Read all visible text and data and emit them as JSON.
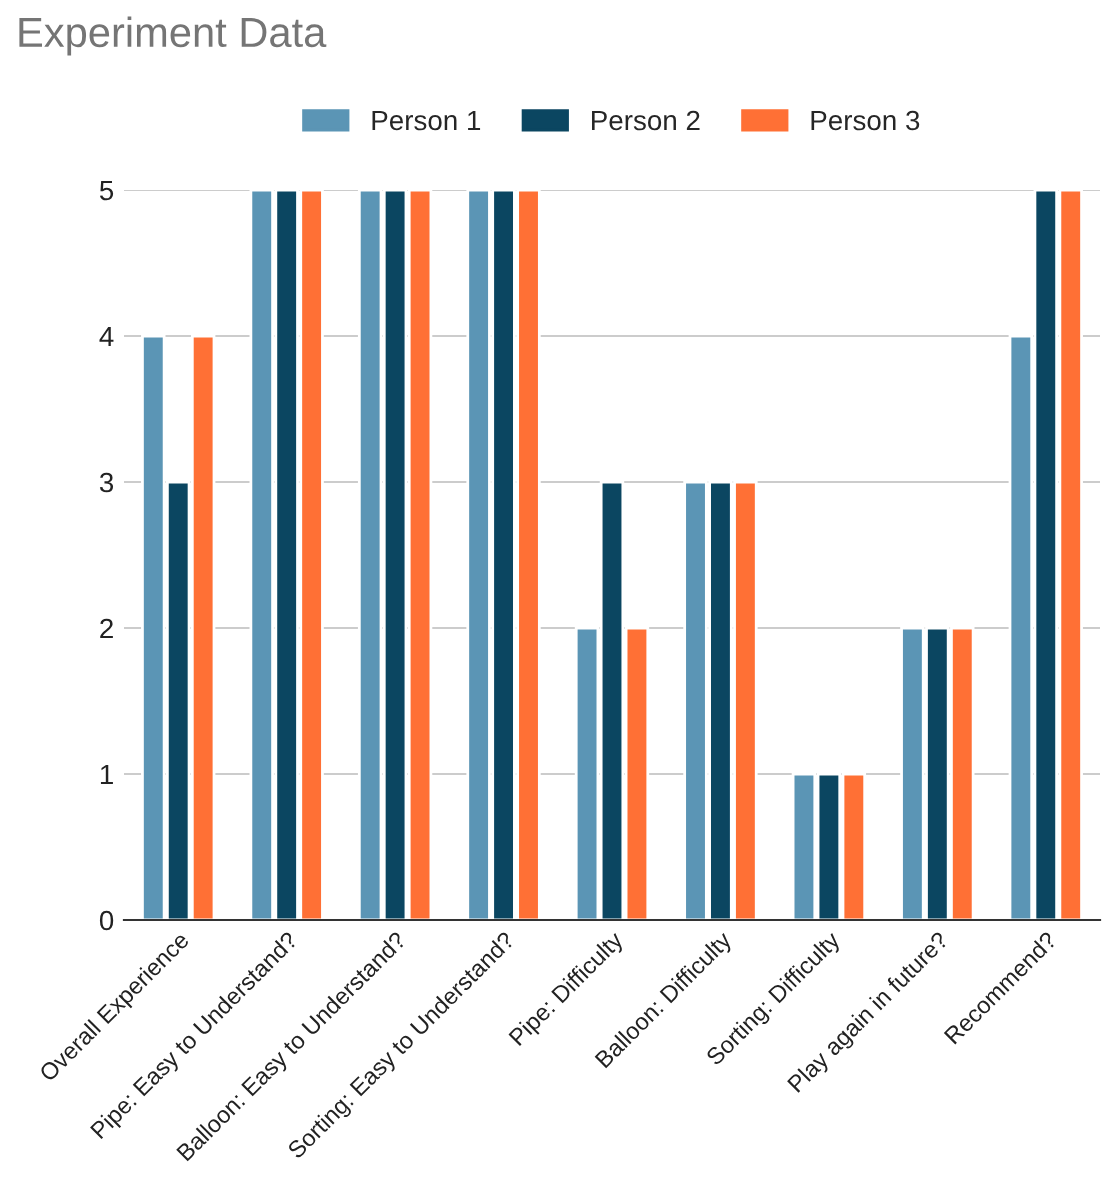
{
  "chart_data": {
    "type": "bar",
    "title": "Experiment Data",
    "categories": [
      "Overall Experience",
      "Pipe: Easy to Understand?",
      "Balloon: Easy to Understand?",
      "Sorting: Easy to Understand?",
      "Pipe: Difficulty",
      "Balloon: Difficulty",
      "Sorting: Difficulty",
      "Play again in future?",
      "Recommend?"
    ],
    "series": [
      {
        "name": "Person 1",
        "color": "#5b95b5",
        "values": [
          4,
          5,
          5,
          5,
          2,
          3,
          1,
          2,
          4
        ]
      },
      {
        "name": "Person 2",
        "color": "#0b4661",
        "values": [
          3,
          5,
          5,
          5,
          3,
          3,
          1,
          2,
          5
        ]
      },
      {
        "name": "Person 3",
        "color": "#ff7035",
        "values": [
          4,
          5,
          5,
          5,
          2,
          3,
          1,
          2,
          5
        ]
      }
    ],
    "ylim": [
      0,
      5
    ],
    "yticks": [
      0,
      1,
      2,
      3,
      4,
      5
    ],
    "grid": "y",
    "legend": "top"
  }
}
